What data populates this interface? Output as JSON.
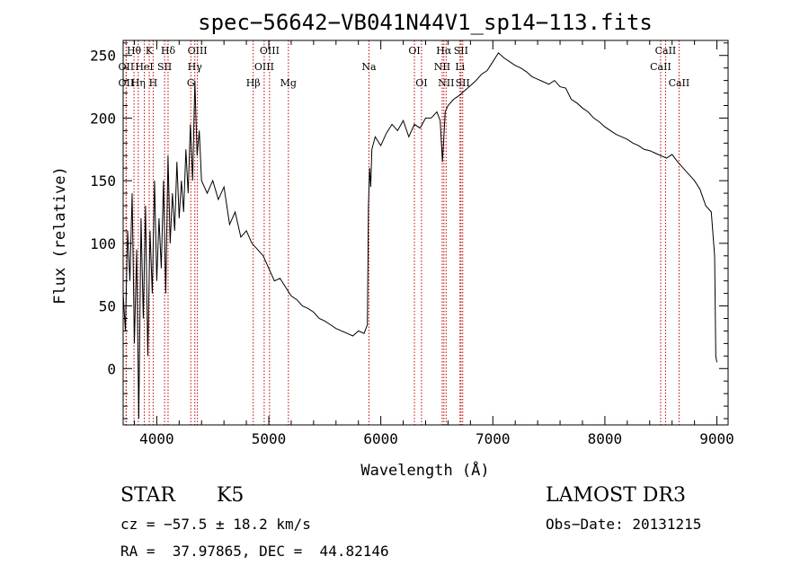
{
  "chart_data": {
    "type": "line",
    "title": "spec−56642−VB041N44V1_sp14−113.fits",
    "xlabel": "Wavelength (Å)",
    "ylabel": "Flux (relative)",
    "xlim": [
      3700,
      9100
    ],
    "ylim": [
      -45,
      262
    ],
    "xticks": [
      4000,
      5000,
      6000,
      7000,
      8000,
      9000
    ],
    "yticks": [
      0,
      50,
      100,
      150,
      200,
      250
    ],
    "series": [
      {
        "name": "flux",
        "x": [
          3700,
          3720,
          3740,
          3760,
          3780,
          3800,
          3820,
          3840,
          3860,
          3880,
          3900,
          3920,
          3940,
          3960,
          3980,
          4000,
          4020,
          4040,
          4060,
          4080,
          4100,
          4120,
          4140,
          4160,
          4180,
          4200,
          4220,
          4240,
          4260,
          4280,
          4300,
          4320,
          4340,
          4360,
          4380,
          4400,
          4450,
          4500,
          4550,
          4600,
          4650,
          4700,
          4750,
          4800,
          4850,
          4900,
          4950,
          5000,
          5050,
          5100,
          5150,
          5200,
          5250,
          5300,
          5350,
          5400,
          5450,
          5500,
          5550,
          5600,
          5650,
          5700,
          5750,
          5800,
          5850,
          5880,
          5890,
          5900,
          5910,
          5920,
          5950,
          6000,
          6050,
          6100,
          6150,
          6200,
          6250,
          6300,
          6350,
          6400,
          6450,
          6500,
          6530,
          6550,
          6563,
          6575,
          6600,
          6650,
          6700,
          6750,
          6800,
          6850,
          6900,
          6950,
          7000,
          7050,
          7100,
          7150,
          7200,
          7250,
          7300,
          7350,
          7400,
          7450,
          7500,
          7550,
          7600,
          7650,
          7700,
          7750,
          7800,
          7850,
          7900,
          7950,
          8000,
          8050,
          8100,
          8150,
          8200,
          8250,
          8300,
          8350,
          8400,
          8450,
          8500,
          8550,
          8600,
          8650,
          8700,
          8750,
          8800,
          8850,
          8900,
          8950,
          8980,
          8990,
          9000
        ],
        "values": [
          60,
          30,
          110,
          70,
          140,
          20,
          95,
          -40,
          120,
          40,
          130,
          10,
          110,
          60,
          150,
          70,
          120,
          80,
          150,
          60,
          170,
          100,
          140,
          110,
          165,
          120,
          150,
          125,
          175,
          140,
          195,
          150,
          230,
          170,
          190,
          150,
          140,
          150,
          135,
          145,
          115,
          125,
          105,
          110,
          100,
          95,
          90,
          80,
          70,
          72,
          65,
          58,
          55,
          50,
          48,
          45,
          40,
          38,
          35,
          32,
          30,
          28,
          26,
          30,
          28,
          35,
          130,
          160,
          145,
          175,
          185,
          178,
          188,
          195,
          190,
          198,
          185,
          195,
          192,
          200,
          200,
          205,
          198,
          165,
          185,
          205,
          210,
          215,
          218,
          222,
          226,
          230,
          235,
          238,
          245,
          252,
          248,
          245,
          242,
          240,
          237,
          233,
          231,
          229,
          227,
          230,
          225,
          224,
          215,
          212,
          208,
          205,
          200,
          197,
          193,
          190,
          187,
          185,
          183,
          180,
          178,
          175,
          174,
          172,
          170,
          168,
          171,
          165,
          160,
          155,
          150,
          143,
          130,
          125,
          90,
          10,
          5
        ]
      }
    ],
    "lines": [
      {
        "name": "OII",
        "wavelength": 3727,
        "row": 2
      },
      {
        "name": "Hθ",
        "wavelength": 3797,
        "row": 0
      },
      {
        "name": "OII",
        "wavelength": 3727,
        "row": 1
      },
      {
        "name": "Hη",
        "wavelength": 3835,
        "row": 2
      },
      {
        "name": "HeI",
        "wavelength": 3889,
        "row": 1
      },
      {
        "name": "K",
        "wavelength": 3933,
        "row": 0
      },
      {
        "name": "H",
        "wavelength": 3968,
        "row": 2
      },
      {
        "name": "SII",
        "wavelength": 4070,
        "row": 1
      },
      {
        "name": "Hδ",
        "wavelength": 4101,
        "row": 0
      },
      {
        "name": "G",
        "wavelength": 4304,
        "row": 2
      },
      {
        "name": "Hγ",
        "wavelength": 4340,
        "row": 1
      },
      {
        "name": "OIII",
        "wavelength": 4363,
        "row": 0
      },
      {
        "name": "Hβ",
        "wavelength": 4861,
        "row": 2
      },
      {
        "name": "OIII",
        "wavelength": 4959,
        "row": 1
      },
      {
        "name": "OIII",
        "wavelength": 5007,
        "row": 0
      },
      {
        "name": "Mg",
        "wavelength": 5175,
        "row": 2
      },
      {
        "name": "Na",
        "wavelength": 5894,
        "row": 1
      },
      {
        "name": "OI",
        "wavelength": 6300,
        "row": 0
      },
      {
        "name": "OI",
        "wavelength": 6363,
        "row": 2
      },
      {
        "name": "NII",
        "wavelength": 6548,
        "row": 1
      },
      {
        "name": "Hα",
        "wavelength": 6563,
        "row": 0
      },
      {
        "name": "NII",
        "wavelength": 6583,
        "row": 2
      },
      {
        "name": "Li",
        "wavelength": 6707,
        "row": 1
      },
      {
        "name": "SII",
        "wavelength": 6716,
        "row": 0
      },
      {
        "name": "SII",
        "wavelength": 6731,
        "row": 2
      },
      {
        "name": "CaII",
        "wavelength": 8498,
        "row": 1
      },
      {
        "name": "CaII",
        "wavelength": 8542,
        "row": 0
      },
      {
        "name": "CaII",
        "wavelength": 8662,
        "row": 2
      }
    ]
  },
  "info": {
    "object_class": "STAR",
    "subclass": "K5",
    "survey": "LAMOST DR3",
    "redshift": "cz = −57.5 ± 18.2 km/s",
    "obs_date": "Obs−Date: 20131215",
    "coords": "RA =  37.97865, DEC =  44.82146"
  },
  "colors": {
    "line_marker": "#c00000",
    "spectrum": "#000000"
  }
}
